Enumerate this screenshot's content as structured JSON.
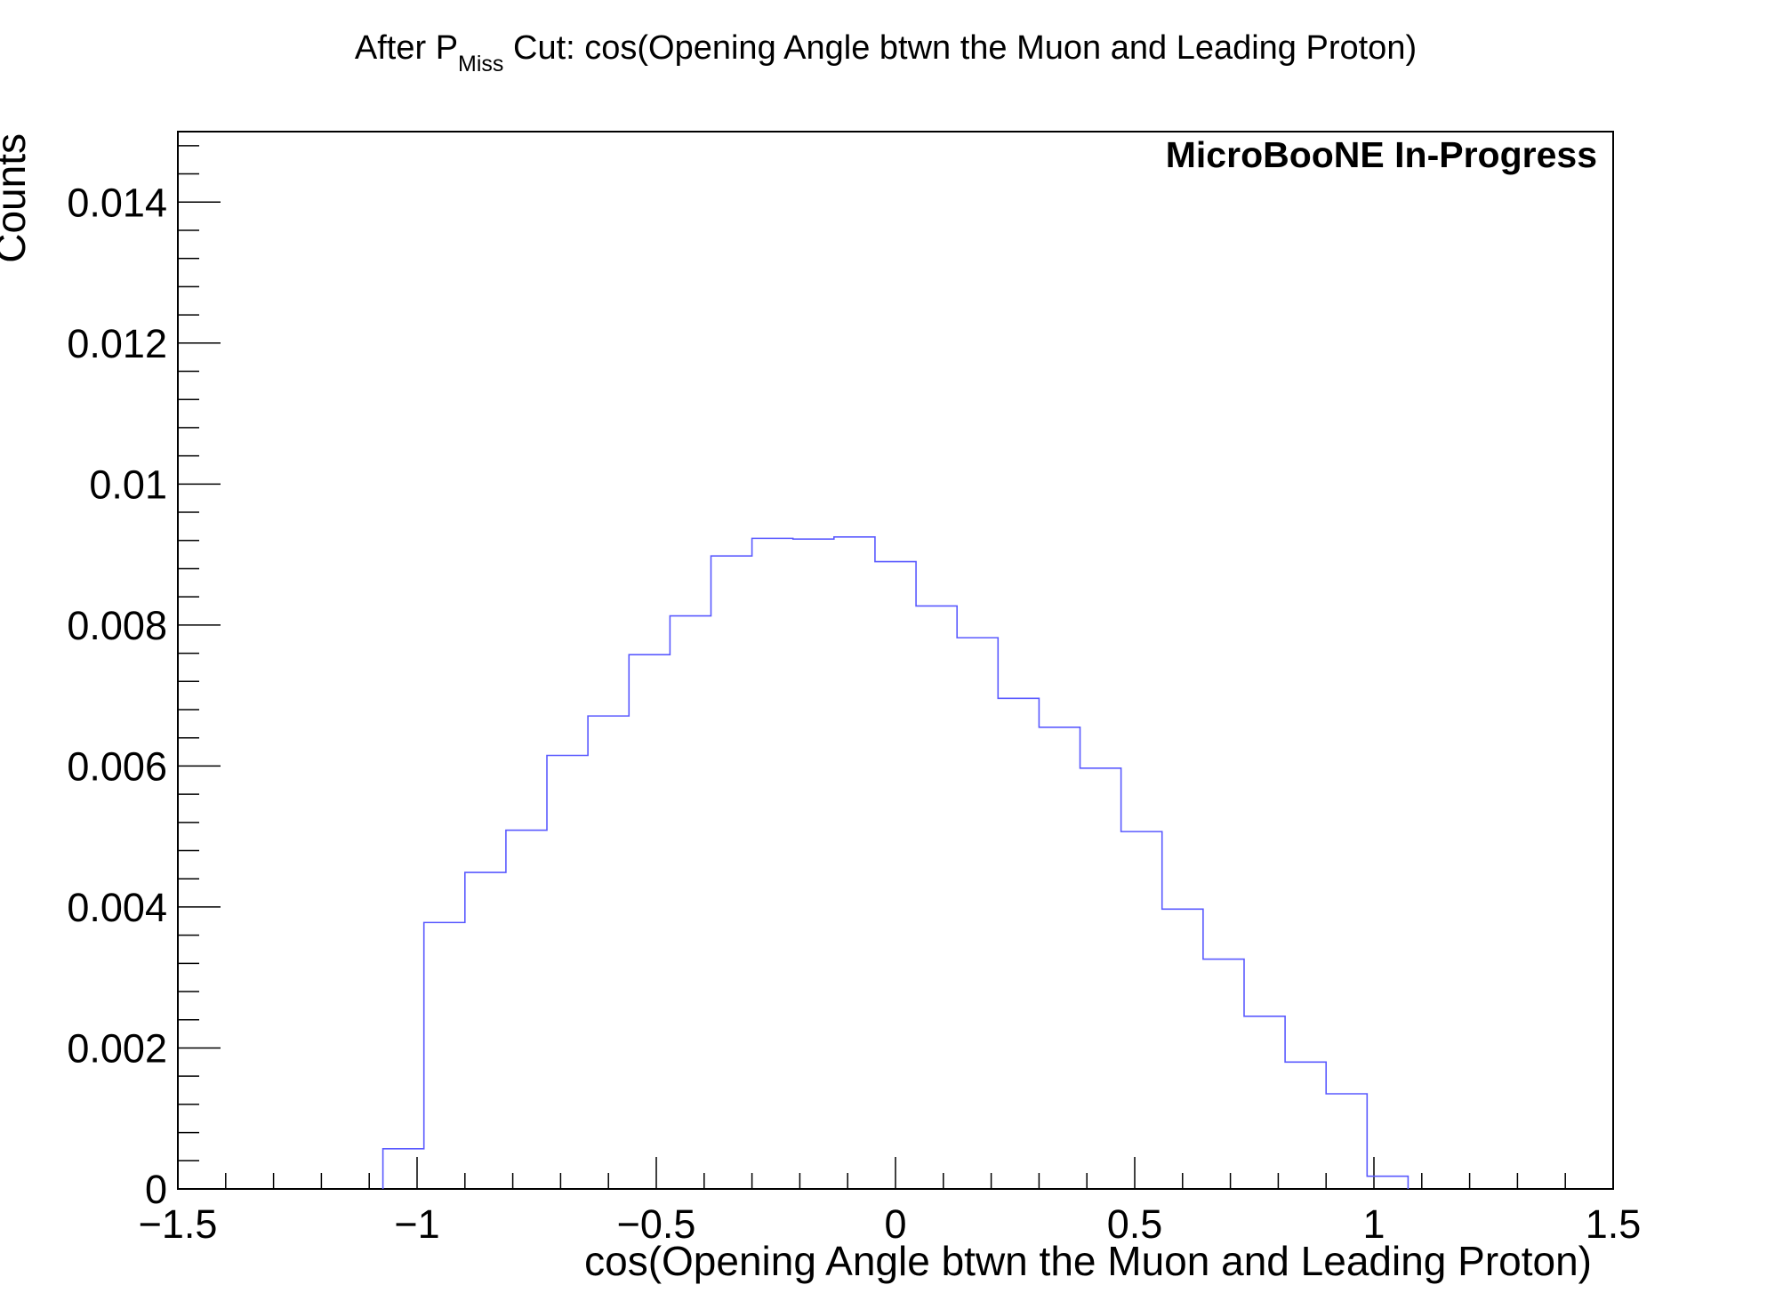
{
  "chart_data": {
    "type": "histogram",
    "title": {
      "prefix": "After P",
      "subscript": "Miss",
      "suffix": " Cut: cos(Opening Angle btwn the Muon and Leading Proton)"
    },
    "xlabel": "cos(Opening Angle btwn the Muon and Leading Proton)",
    "ylabel": "Counts",
    "annotation": "MicroBooNE In-Progress",
    "xlim": [
      -1.5,
      1.5
    ],
    "ylim": [
      0,
      0.015
    ],
    "x_ticks": [
      {
        "value": -1.5,
        "label": "−1.5"
      },
      {
        "value": -1,
        "label": "−1"
      },
      {
        "value": -0.5,
        "label": "−0.5"
      },
      {
        "value": 0,
        "label": "0"
      },
      {
        "value": 0.5,
        "label": "0.5"
      },
      {
        "value": 1,
        "label": "1"
      },
      {
        "value": 1.5,
        "label": "1.5"
      }
    ],
    "y_ticks": [
      {
        "value": 0,
        "label": "0"
      },
      {
        "value": 0.002,
        "label": "0.002"
      },
      {
        "value": 0.004,
        "label": "0.004"
      },
      {
        "value": 0.006,
        "label": "0.006"
      },
      {
        "value": 0.008,
        "label": "0.008"
      },
      {
        "value": 0.01,
        "label": "0.01"
      },
      {
        "value": 0.012,
        "label": "0.012"
      },
      {
        "value": 0.014,
        "label": "0.014"
      }
    ],
    "grid": false,
    "line_color": "#5a5aff",
    "bin_edges": [
      -1.0714,
      -0.9857,
      -0.9,
      -0.8143,
      -0.7286,
      -0.6429,
      -0.5571,
      -0.4714,
      -0.3857,
      -0.3,
      -0.2143,
      -0.1286,
      -0.0429,
      0.0429,
      0.1286,
      0.2143,
      0.3,
      0.3857,
      0.4714,
      0.5571,
      0.6429,
      0.7286,
      0.8143,
      0.9,
      0.9857,
      1.0714
    ],
    "values": [
      0.00057,
      0.00378,
      0.00449,
      0.00509,
      0.00615,
      0.00671,
      0.00758,
      0.00813,
      0.00898,
      0.00923,
      0.00922,
      0.00925,
      0.0089,
      0.00827,
      0.00782,
      0.00696,
      0.00655,
      0.00597,
      0.00507,
      0.00397,
      0.00326,
      0.00245,
      0.0018,
      0.00135,
      0.00018
    ]
  }
}
